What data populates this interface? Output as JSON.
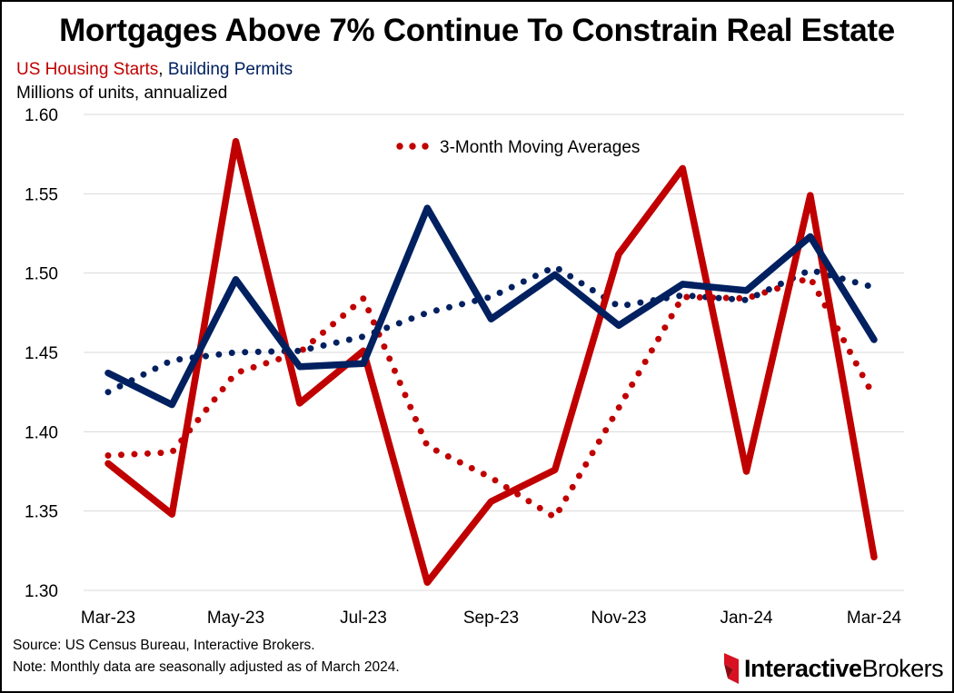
{
  "title": "Mortgages Above 7% Continue To Constrain Real Estate",
  "subtitle": {
    "series1": "US Housing Starts",
    "separator": ",",
    "series2": "Building Permits"
  },
  "units": "Millions of units, annualized",
  "legend_note": "3-Month Moving Averages",
  "source": "Source: US Census Bureau, Interactive Brokers.",
  "note": "Note: Monthly data are seasonally adjusted as of March 2024.",
  "logo": {
    "part1": "Interactive",
    "part2": "Brokers"
  },
  "colors": {
    "starts": "#c00000",
    "permits": "#002060"
  },
  "chart_data": {
    "type": "line",
    "x": [
      "Mar-23",
      "Apr-23",
      "May-23",
      "Jun-23",
      "Jul-23",
      "Aug-23",
      "Sep-23",
      "Oct-23",
      "Nov-23",
      "Dec-23",
      "Jan-24",
      "Feb-24",
      "Mar-24"
    ],
    "x_tick_labels": [
      "Mar-23",
      "May-23",
      "Jul-23",
      "Sep-23",
      "Nov-23",
      "Jan-24",
      "Mar-24"
    ],
    "ylim": [
      1.3,
      1.6
    ],
    "y_ticks": [
      "1.30",
      "1.35",
      "1.40",
      "1.45",
      "1.50",
      "1.55",
      "1.60"
    ],
    "grid": true,
    "series": [
      {
        "name": "US Housing Starts",
        "style": "solid",
        "color": "#c00000",
        "values": [
          1.38,
          1.348,
          1.583,
          1.418,
          1.451,
          1.305,
          1.356,
          1.376,
          1.512,
          1.566,
          1.375,
          1.549,
          1.321
        ]
      },
      {
        "name": "Building Permits",
        "style": "solid",
        "color": "#002060",
        "values": [
          1.437,
          1.417,
          1.496,
          1.441,
          1.443,
          1.541,
          1.471,
          1.499,
          1.467,
          1.493,
          1.489,
          1.523,
          1.458
        ]
      },
      {
        "name": "US Housing Starts",
        "style": "dotted",
        "color": "#c00000",
        "values": [
          1.385,
          1.387,
          1.437,
          1.45,
          1.484,
          1.391,
          1.371,
          1.346,
          1.415,
          1.485,
          1.484,
          1.497,
          1.422
        ]
      },
      {
        "name": "Building Permits",
        "style": "dotted",
        "color": "#002060",
        "values": [
          1.425,
          1.445,
          1.45,
          1.451,
          1.46,
          1.475,
          1.485,
          1.504,
          1.479,
          1.486,
          1.483,
          1.502,
          1.491
        ]
      }
    ]
  }
}
